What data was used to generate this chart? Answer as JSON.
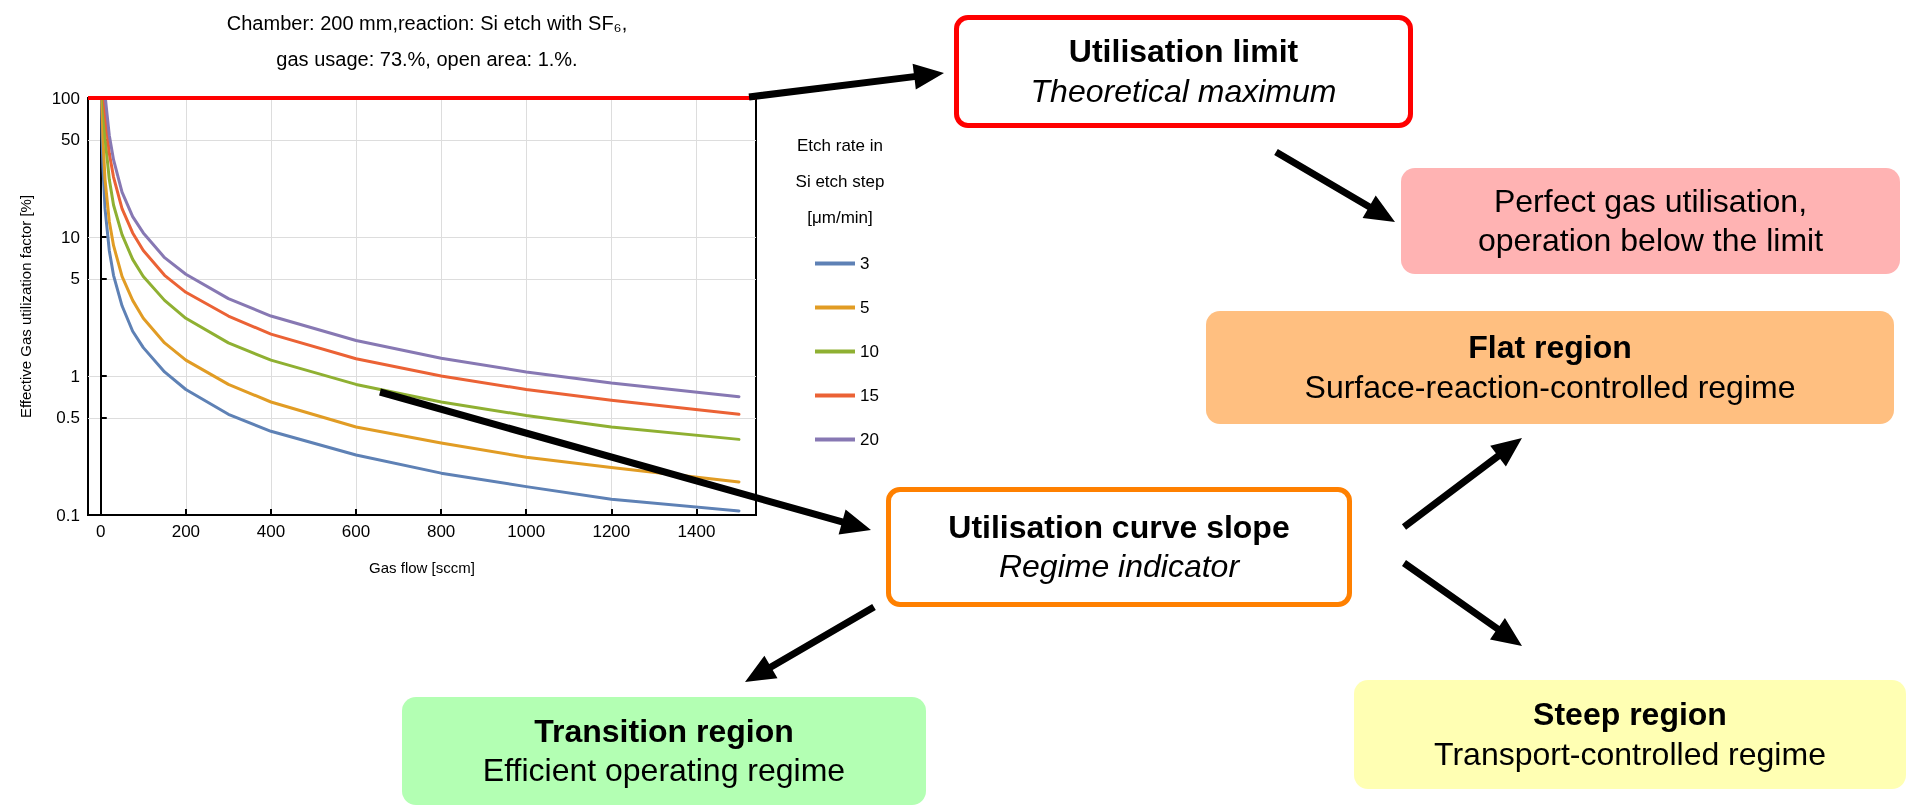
{
  "chart_data": {
    "type": "line",
    "title": "Chamber: 200 mm,reaction: Si etch with SF₆,",
    "subtitle": "gas usage: 73.%, open area: 1.%.",
    "xlabel": "Gas flow [sccm]",
    "ylabel": "Effective Gas utilization factor [%]",
    "legend_title": "Etch rate in Si etch step [μm/min]",
    "log": "y",
    "grid": true,
    "legend": "right",
    "marker": "none",
    "line_style": "solid",
    "xlim": [
      -30,
      1540
    ],
    "xticks": [
      0,
      200,
      400,
      600,
      800,
      1000,
      1200,
      1400
    ],
    "ylim": [
      0.1,
      100
    ],
    "yticks": [
      0.1,
      0.5,
      1,
      5,
      10,
      50,
      100
    ],
    "ref_lines": [
      {
        "axis": "y",
        "value": 100,
        "color": "#ff0000"
      }
    ],
    "series": [
      {
        "name": "3",
        "color": "#5e81b5",
        "x": [
          1.6,
          3,
          5,
          10,
          20,
          30,
          50,
          75,
          100,
          150,
          200,
          300,
          400,
          600,
          800,
          1000,
          1200,
          1500
        ],
        "values": [
          100,
          53,
          32,
          16,
          8,
          5.3,
          3.2,
          2.1,
          1.6,
          1.07,
          0.8,
          0.53,
          0.4,
          0.27,
          0.2,
          0.16,
          0.13,
          0.107
        ]
      },
      {
        "name": "5",
        "color": "#e19c24",
        "x": [
          2.6,
          5,
          10,
          20,
          30,
          50,
          75,
          100,
          150,
          200,
          300,
          400,
          600,
          800,
          1000,
          1200,
          1500
        ],
        "values": [
          100,
          52,
          26,
          13,
          8.7,
          5.2,
          3.5,
          2.6,
          1.73,
          1.3,
          0.87,
          0.65,
          0.43,
          0.33,
          0.26,
          0.22,
          0.173
        ]
      },
      {
        "name": "10",
        "color": "#8fb032",
        "x": [
          5.2,
          10,
          20,
          30,
          50,
          75,
          100,
          150,
          200,
          300,
          400,
          600,
          800,
          1000,
          1200,
          1500
        ],
        "values": [
          100,
          52,
          26,
          17,
          10.4,
          6.9,
          5.2,
          3.5,
          2.6,
          1.73,
          1.3,
          0.87,
          0.65,
          0.52,
          0.43,
          0.35
        ]
      },
      {
        "name": "15",
        "color": "#eb6235",
        "x": [
          8,
          10,
          20,
          30,
          50,
          75,
          100,
          150,
          200,
          300,
          400,
          600,
          800,
          1000,
          1200,
          1500
        ],
        "values": [
          100,
          80,
          40,
          27,
          16,
          10.7,
          8,
          5.3,
          4,
          2.7,
          2,
          1.33,
          1,
          0.8,
          0.67,
          0.53
        ]
      },
      {
        "name": "20",
        "color": "#8778b3",
        "x": [
          10.7,
          20,
          30,
          50,
          75,
          100,
          150,
          200,
          300,
          400,
          600,
          800,
          1000,
          1200,
          1500
        ],
        "values": [
          100,
          54,
          36,
          21,
          14,
          10.7,
          7.1,
          5.4,
          3.6,
          2.7,
          1.8,
          1.34,
          1.07,
          0.89,
          0.71
        ]
      }
    ],
    "annotations": [
      "Utilisation limit\nTheoretical maximum",
      "Perfect gas utilisation,\noperation below the limit",
      "Flat region\nSurface-reaction-controlled regime",
      "Utilisation curve slope\nRegime indicator",
      "Transition region\nEfficient operating regime",
      "Steep region\nTransport-controlled regime"
    ]
  }
}
